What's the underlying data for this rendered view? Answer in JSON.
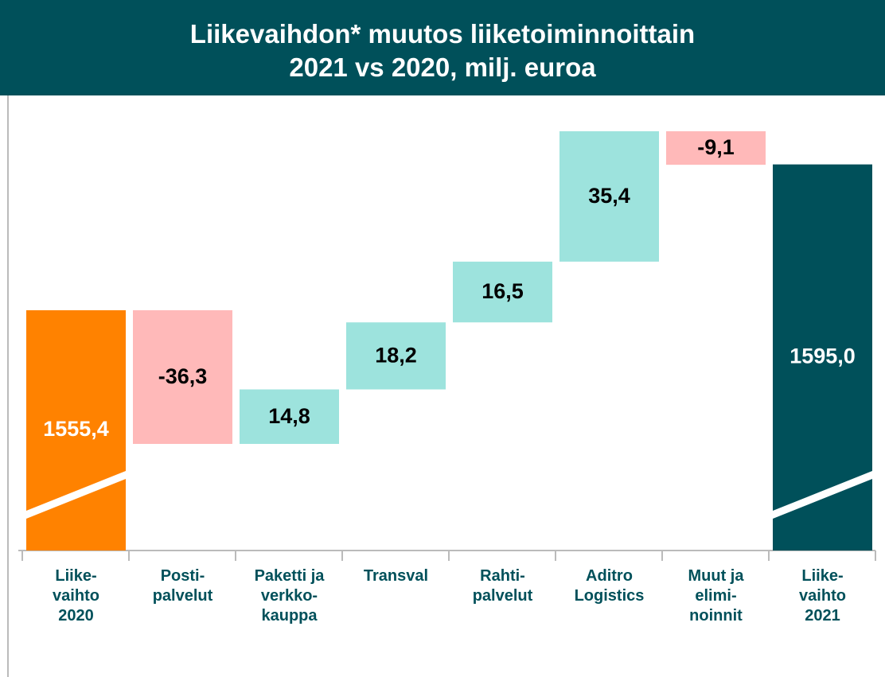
{
  "chart_data": {
    "type": "waterfall",
    "title": "Liikevaihdon* muutos liiketoiminnoittain\n2021 vs 2020, milj. euroa",
    "categories": [
      "Liike-\nvaihto\n2020",
      "Posti-\npalvelut",
      "Paketti ja\nverkko-\nkauppa",
      "Transval",
      "Rahti-\npalvelut",
      "Aditro\nLogistics",
      "Muut ja\nelimi-\nnoinnit",
      "Liike-\nvaihto\n2021"
    ],
    "values": [
      1555.4,
      -36.3,
      14.8,
      18.2,
      16.5,
      35.4,
      -9.1,
      1595.0
    ],
    "value_labels": [
      "1555,4",
      "-36,3",
      "14,8",
      "18,2",
      "16,5",
      "35,4",
      "-9,1",
      "1595,0"
    ],
    "colors": [
      "#ff8200",
      "#ffb9b9",
      "#9de3dd",
      "#9de3dd",
      "#9de3dd",
      "#9de3dd",
      "#ffb9b9",
      "#00505a"
    ]
  }
}
